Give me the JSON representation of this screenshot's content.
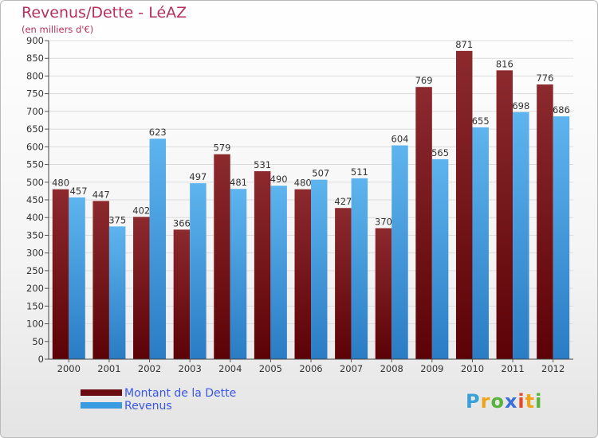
{
  "header": {
    "title": "Revenus/Dette - LéAZ",
    "subtitle": "(en milliers d'€)"
  },
  "legend": {
    "items": [
      {
        "label": "Montant de la Dette",
        "color": "#7a1418"
      },
      {
        "label": "Revenus",
        "color": "#3a9be0"
      }
    ]
  },
  "logo": {
    "text": "Proxiti",
    "letters": [
      "P",
      "r",
      "o",
      "x",
      "i",
      "t",
      "i"
    ]
  },
  "chart_data": {
    "type": "bar",
    "categories": [
      "2000",
      "2001",
      "2002",
      "2003",
      "2004",
      "2005",
      "2006",
      "2007",
      "2008",
      "2009",
      "2010",
      "2011",
      "2012"
    ],
    "series": [
      {
        "name": "Montant de la Dette",
        "color": "#7a1418",
        "values": [
          480,
          447,
          402,
          366,
          579,
          531,
          480,
          427,
          370,
          769,
          871,
          816,
          776
        ]
      },
      {
        "name": "Revenus",
        "color": "#3a9be0",
        "values": [
          457,
          375,
          623,
          497,
          481,
          490,
          507,
          511,
          604,
          565,
          655,
          698,
          686
        ]
      }
    ],
    "ylim": [
      0,
      900
    ],
    "yticks": [
      0,
      50,
      100,
      150,
      200,
      250,
      300,
      350,
      400,
      450,
      500,
      550,
      600,
      650,
      700,
      750,
      800,
      850,
      900
    ],
    "grid": true,
    "legend_position": "bottom-left"
  }
}
